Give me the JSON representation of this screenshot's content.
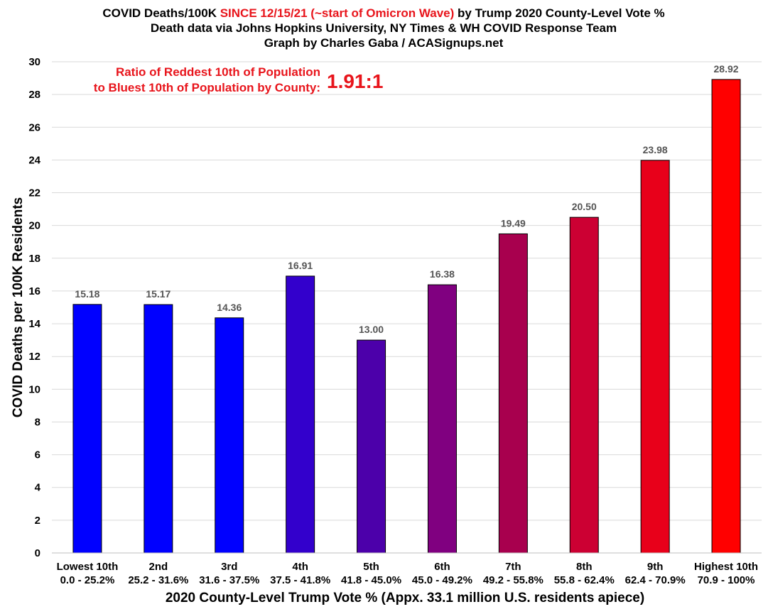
{
  "chart_data": {
    "type": "bar",
    "title": {
      "line1_part1": "COVID Deaths/100K ",
      "line1_part2": "SINCE 12/15/21 (~start of Omicron Wave)",
      "line1_part3": " by Trump 2020 County-Level Vote %",
      "line2": "Death data via Johns Hopkins University, NY Times & WH COVID Response Team",
      "line3": "Graph by Charles Gaba / ACASignups.net"
    },
    "title_highlight_color": "#e8141b",
    "ylabel": "COVID Deaths per 100K Residents",
    "xlabel": "2020 County-Level Trump Vote % (Appx. 33.1 million U.S. residents apiece)",
    "ylim": [
      0,
      30
    ],
    "yticks": [
      "0",
      "2",
      "4",
      "6",
      "8",
      "10",
      "12",
      "14",
      "16",
      "18",
      "20",
      "22",
      "24",
      "26",
      "28",
      "30"
    ],
    "grid": true,
    "categories": [
      {
        "name": "Lowest 10th",
        "range": "0.0 - 25.2%"
      },
      {
        "name": "2nd",
        "range": "25.2 - 31.6%"
      },
      {
        "name": "3rd",
        "range": "31.6 - 37.5%"
      },
      {
        "name": "4th",
        "range": "37.5 - 41.8%"
      },
      {
        "name": "5th",
        "range": "41.8 - 45.0%"
      },
      {
        "name": "6th",
        "range": "45.0 - 49.2%"
      },
      {
        "name": "7th",
        "range": "49.2 - 55.8%"
      },
      {
        "name": "8th",
        "range": "55.8 - 62.4%"
      },
      {
        "name": "9th",
        "range": "62.4 - 70.9%"
      },
      {
        "name": "Highest 10th",
        "range": "70.9 - 100%"
      }
    ],
    "values": [
      15.18,
      15.17,
      14.36,
      16.91,
      13.0,
      16.38,
      19.49,
      20.5,
      23.98,
      28.92
    ],
    "value_labels": [
      "15.18",
      "15.17",
      "14.36",
      "16.91",
      "13.00",
      "16.38",
      "19.49",
      "20.50",
      "23.98",
      "28.92"
    ],
    "bar_colors": [
      "#0000ff",
      "#0000ff",
      "#0000ff",
      "#3300cc",
      "#4c00aa",
      "#800080",
      "#a8004e",
      "#cc0033",
      "#e8001a",
      "#ff0000"
    ],
    "annotation": {
      "line1": "Ratio of Reddest 10th of Population",
      "line2": "to Bluest 10th of Population by County:",
      "value": "1.91:1"
    }
  }
}
